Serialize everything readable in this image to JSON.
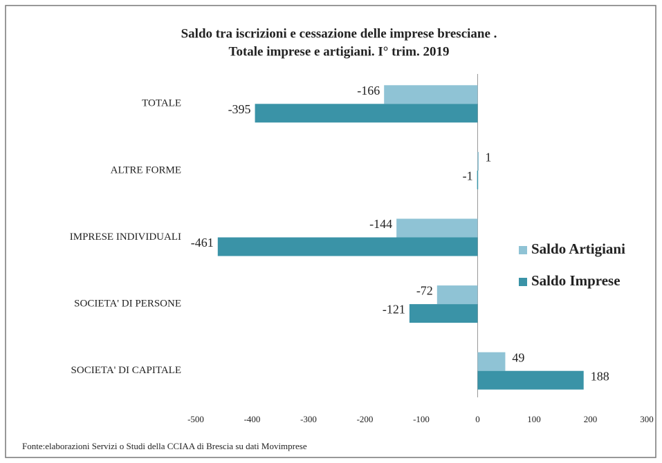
{
  "chart_data": {
    "type": "bar",
    "orientation": "horizontal",
    "title": [
      "Saldo tra iscrizioni e cessazione delle imprese bresciane .",
      "Totale imprese e artigiani. I° trim. 2019"
    ],
    "categories": [
      "TOTALE",
      "ALTRE FORME",
      "IMPRESE INDIVIDUALI",
      "SOCIETA'  DI PERSONE",
      "SOCIETA'  DI CAPITALE"
    ],
    "series": [
      {
        "name": "Saldo Artigiani",
        "color": "#8fc3d5",
        "values": [
          -166,
          1,
          -144,
          -72,
          49
        ]
      },
      {
        "name": "Saldo Imprese",
        "color": "#3a93a7",
        "values": [
          -395,
          -1,
          -461,
          -121,
          188
        ]
      }
    ],
    "xlim": [
      -500,
      300
    ],
    "xticks": [
      -500,
      -400,
      -300,
      -200,
      -100,
      0,
      100,
      200,
      300
    ],
    "legend": "right",
    "source": "Fonte:elaborazioni  Servizi  o Studi  della  CCIAA di Brescia su dati  Movimprese"
  }
}
